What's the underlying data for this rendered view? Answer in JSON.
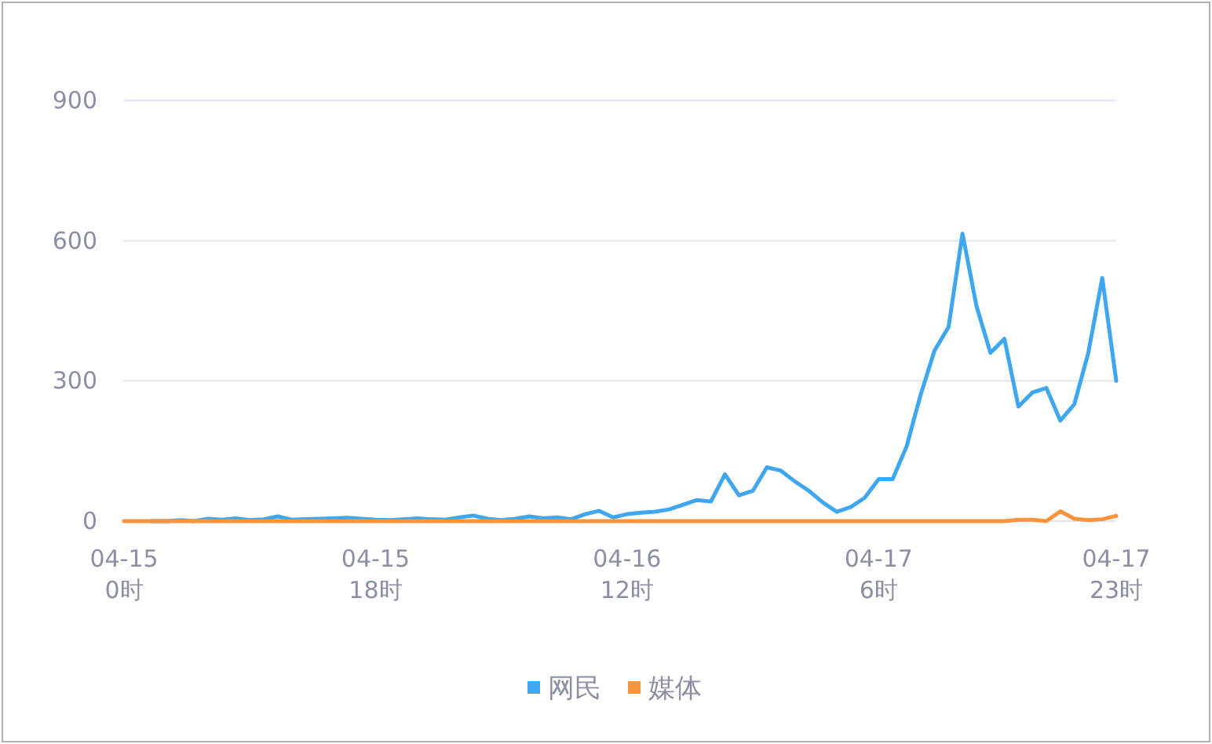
{
  "chart_data": {
    "type": "line",
    "categories": [
      "04-15\n0时",
      null,
      null,
      null,
      null,
      null,
      null,
      null,
      null,
      null,
      null,
      null,
      null,
      null,
      null,
      null,
      null,
      null,
      "04-15\n18时",
      null,
      null,
      null,
      null,
      null,
      null,
      null,
      null,
      null,
      null,
      null,
      null,
      null,
      null,
      null,
      null,
      null,
      "04-16\n12时",
      null,
      null,
      null,
      null,
      null,
      null,
      null,
      null,
      null,
      null,
      null,
      null,
      null,
      null,
      null,
      null,
      null,
      "04-17\n6时",
      null,
      null,
      null,
      null,
      null,
      null,
      null,
      null,
      null,
      null,
      null,
      null,
      null,
      null,
      null,
      null,
      "04-17\n23时"
    ],
    "series": [
      {
        "name": "网民",
        "color": "#3fa7ef",
        "values": [
          null,
          null,
          0,
          0,
          2,
          0,
          5,
          3,
          6,
          2,
          4,
          10,
          3,
          4,
          5,
          6,
          7,
          5,
          3,
          2,
          4,
          6,
          4,
          3,
          8,
          12,
          5,
          2,
          5,
          10,
          6,
          8,
          4,
          15,
          22,
          8,
          15,
          18,
          20,
          25,
          35,
          45,
          42,
          100,
          55,
          65,
          115,
          108,
          85,
          65,
          40,
          20,
          30,
          50,
          90,
          90,
          160,
          270,
          365,
          415,
          615,
          460,
          360,
          390,
          245,
          275,
          285,
          215,
          250,
          360,
          520,
          300
        ]
      },
      {
        "name": "媒体",
        "color": "#f7943c",
        "values": [
          0,
          0,
          0,
          0,
          0,
          0,
          0,
          0,
          0,
          0,
          0,
          0,
          0,
          0,
          0,
          0,
          0,
          0,
          0,
          0,
          0,
          0,
          0,
          0,
          0,
          0,
          0,
          0,
          0,
          0,
          0,
          0,
          0,
          0,
          0,
          0,
          0,
          0,
          0,
          0,
          0,
          0,
          0,
          0,
          0,
          0,
          0,
          0,
          0,
          0,
          0,
          0,
          0,
          0,
          0,
          0,
          0,
          0,
          0,
          0,
          0,
          0,
          0,
          0,
          3,
          3,
          0,
          21,
          5,
          2,
          4,
          11
        ]
      }
    ],
    "ylim": [
      0,
      900
    ],
    "yticks": [
      0,
      300,
      600,
      900
    ],
    "grid": "y",
    "legend": "bottom",
    "marker": "none",
    "line_style": "solid"
  }
}
